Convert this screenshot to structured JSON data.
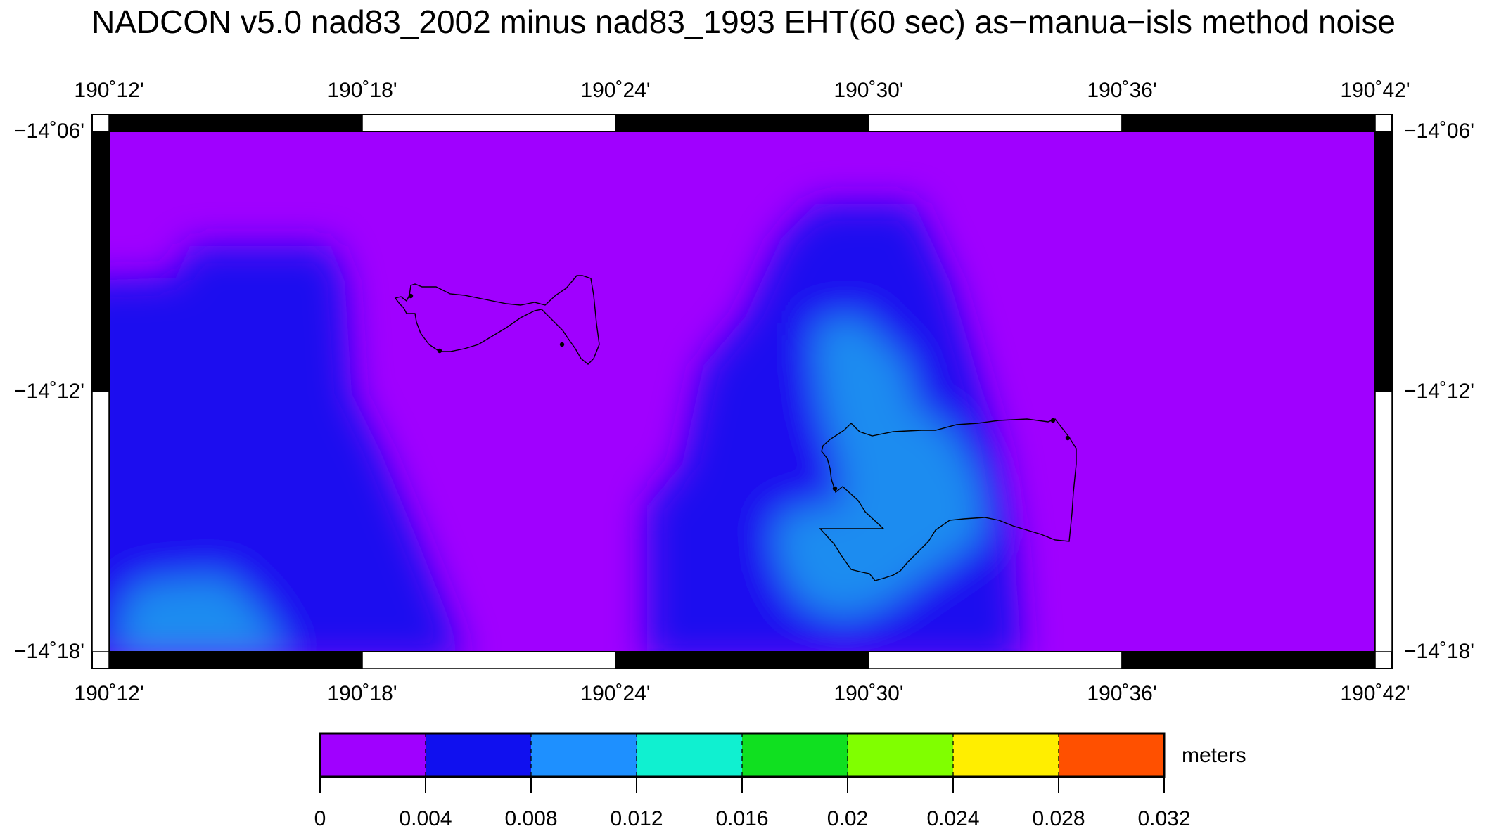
{
  "title": "NADCON v5.0 nad83_2002 minus nad83_1993 EHT(60 sec) as−manua−isls method noise",
  "map": {
    "lon_labels": [
      "190˚12'",
      "190˚18'",
      "190˚24'",
      "190˚30'",
      "190˚36'",
      "190˚42'"
    ],
    "lat_labels": [
      "−14˚06'",
      "−14˚12'",
      "−14˚18'"
    ],
    "lon_range": [
      190.2,
      190.7
    ],
    "lat_range": [
      -14.3,
      -14.1
    ],
    "colors": {
      "band_0_004": "#a000ff",
      "band_004_008": "#1a10ef",
      "band_008_012": "#1e8cf0",
      "coastline": "#000000"
    },
    "coastline_names": [
      "ofu-olosega-coastline",
      "tau-coastline"
    ]
  },
  "colorbar": {
    "unit": "meters",
    "ticks": [
      "0",
      "0.004",
      "0.008",
      "0.012",
      "0.016",
      "0.02",
      "0.024",
      "0.028",
      "0.032"
    ],
    "colors": [
      "#a000ff",
      "#1010ef",
      "#1e90ff",
      "#10f0d0",
      "#10e020",
      "#80ff00",
      "#ffee00",
      "#ff5000"
    ]
  }
}
